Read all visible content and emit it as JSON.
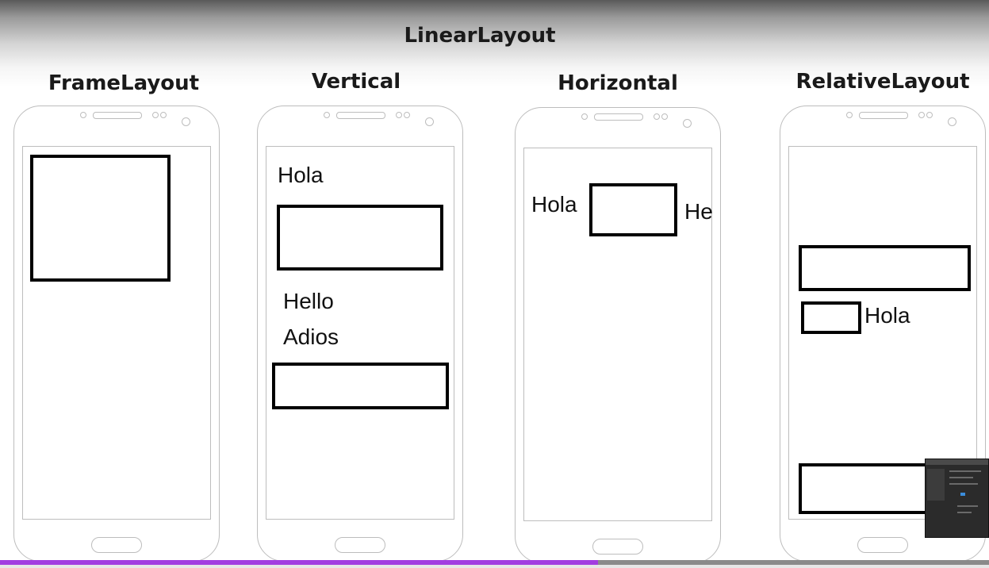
{
  "slide": {
    "title": "LinearLayout",
    "columns": [
      {
        "title": "FrameLayout"
      },
      {
        "title": "Vertical"
      },
      {
        "title": "Horizontal"
      },
      {
        "title": "RelativeLayout"
      }
    ]
  },
  "vertical": {
    "label1": "Hola",
    "label2": "Hello",
    "label3": "Adios"
  },
  "horizontal": {
    "label1": "Hola",
    "label2": "He"
  },
  "relative": {
    "label1": "Hola"
  },
  "player": {
    "progress_fraction": 0.605
  },
  "colors": {
    "accent": "#a23de0",
    "outline": "#bdbdbd"
  }
}
